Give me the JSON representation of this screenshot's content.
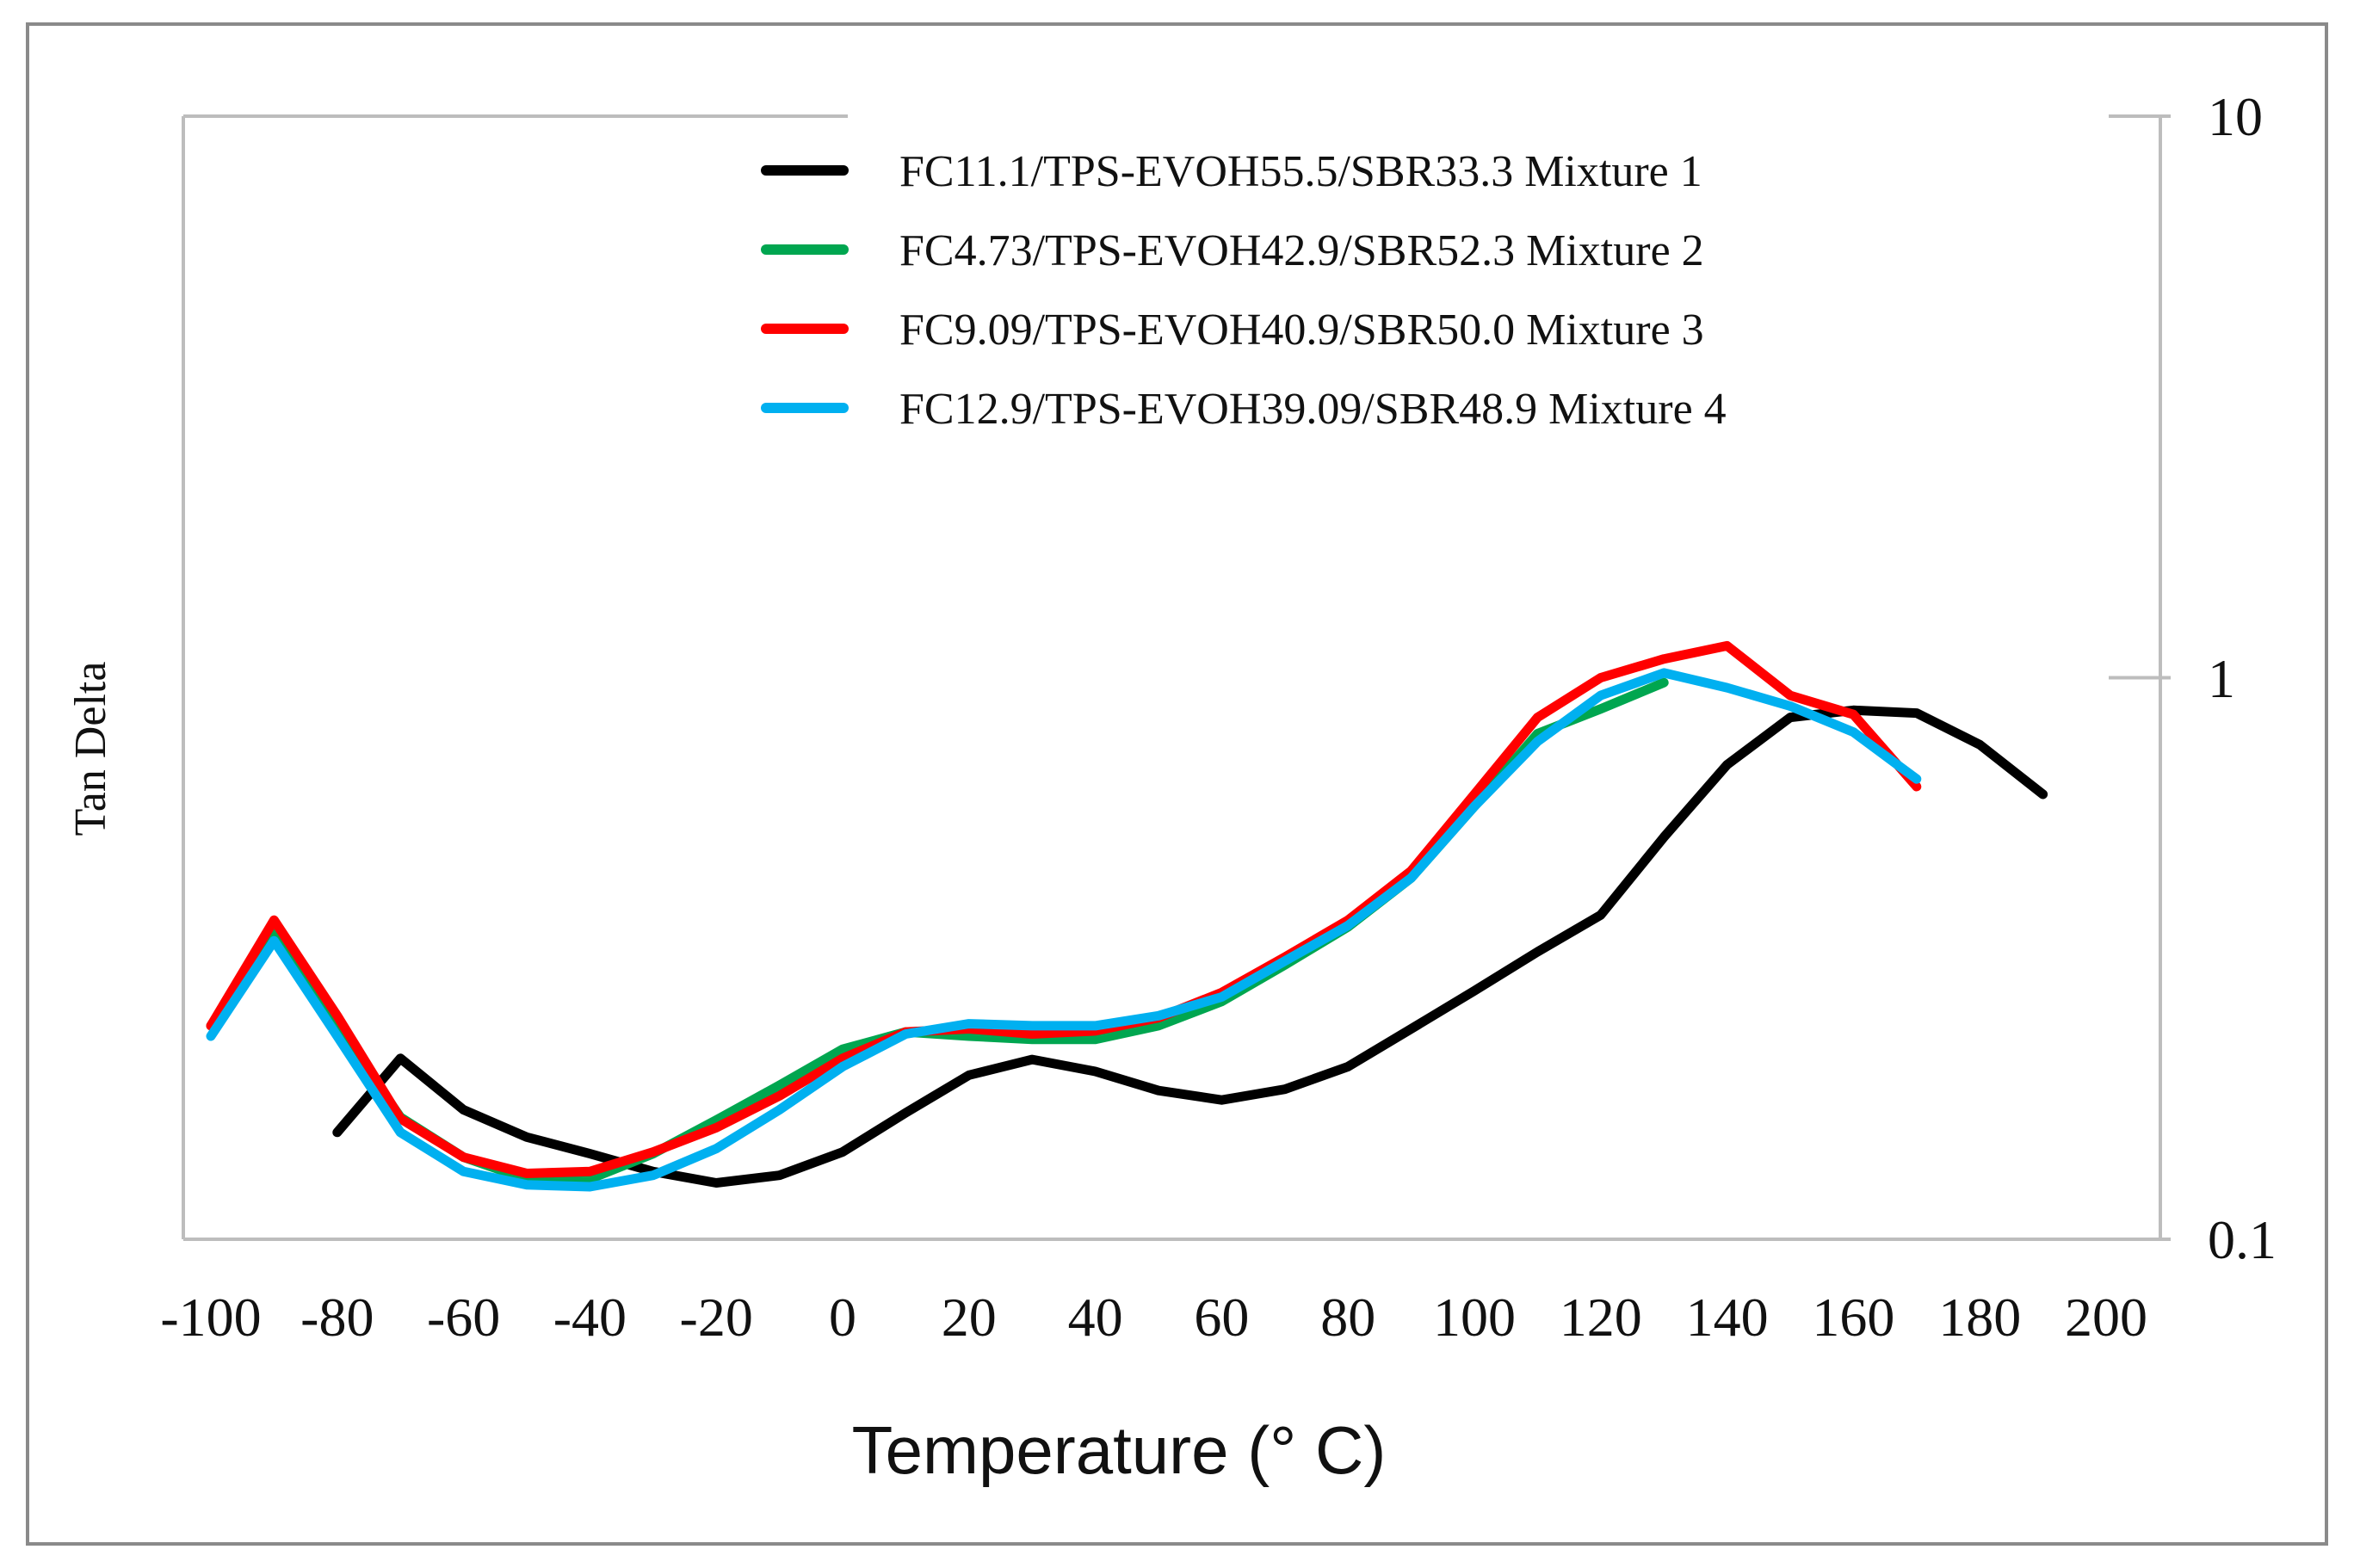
{
  "chart_data": {
    "type": "line",
    "title": "",
    "xlabel": "Temperature (° C)",
    "ylabel": "Tan Delta",
    "xlim": [
      -100,
      200
    ],
    "ylim": [
      0.1,
      10
    ],
    "yscale": "log",
    "xticks": [
      "-100",
      "-80",
      "-60",
      "-40",
      "-20",
      "0",
      "20",
      "40",
      "60",
      "80",
      "100",
      "120",
      "140",
      "160",
      "180",
      "200"
    ],
    "yticks": [
      "10",
      "1",
      "0.1"
    ],
    "grid": false,
    "legend_position": "top",
    "series": [
      {
        "name": "FC11.1/TPS-EVOH55.5/SBR33.3 Mixture 1",
        "color": "#000000",
        "x": [
          -80,
          -70,
          -60,
          -50,
          -40,
          -30,
          -20,
          -10,
          0,
          10,
          20,
          30,
          40,
          50,
          60,
          70,
          80,
          90,
          100,
          110,
          120,
          130,
          140,
          150,
          160,
          170,
          180,
          190
        ],
        "y": [
          0.155,
          0.21,
          0.17,
          0.152,
          0.142,
          0.132,
          0.126,
          0.13,
          0.143,
          0.168,
          0.196,
          0.209,
          0.199,
          0.184,
          0.177,
          0.185,
          0.203,
          0.237,
          0.277,
          0.325,
          0.378,
          0.52,
          0.7,
          0.85,
          0.875,
          0.865,
          0.76,
          0.62
        ]
      },
      {
        "name": "FC4.73/TPS-EVOH42.9/SBR52.3 Mixture 2",
        "color": "#00a650",
        "x": [
          -100,
          -90,
          -80,
          -70,
          -60,
          -50,
          -40,
          -30,
          -20,
          -10,
          0,
          10,
          20,
          30,
          40,
          50,
          60,
          70,
          80,
          90,
          100,
          110,
          120,
          130
        ],
        "y": [
          0.24,
          0.35,
          0.24,
          0.165,
          0.14,
          0.128,
          0.128,
          0.142,
          0.163,
          0.188,
          0.218,
          0.234,
          0.23,
          0.227,
          0.227,
          0.24,
          0.265,
          0.308,
          0.36,
          0.44,
          0.59,
          0.795,
          0.88,
          0.98
        ]
      },
      {
        "name": "FC9.09/TPS-EVOH40.9/SBR50.0 Mixture 3",
        "color": "#ff0000",
        "x": [
          -100,
          -90,
          -80,
          -70,
          -60,
          -50,
          -40,
          -30,
          -20,
          -10,
          0,
          10,
          20,
          30,
          40,
          50,
          60,
          70,
          80,
          90,
          100,
          110,
          120,
          130,
          140,
          150,
          160,
          170
        ],
        "y": [
          0.24,
          0.37,
          0.25,
          0.164,
          0.14,
          0.131,
          0.132,
          0.143,
          0.158,
          0.18,
          0.21,
          0.234,
          0.237,
          0.232,
          0.235,
          0.248,
          0.275,
          0.318,
          0.37,
          0.453,
          0.62,
          0.85,
          1.0,
          1.08,
          1.14,
          0.93,
          0.86,
          0.64
        ]
      },
      {
        "name": "FC12.9/TPS-EVOH39.09/SBR48.9 Mixture 4",
        "color": "#00b0f0",
        "x": [
          -100,
          -90,
          -80,
          -70,
          -60,
          -50,
          -40,
          -30,
          -20,
          -10,
          0,
          10,
          20,
          30,
          40,
          50,
          60,
          70,
          80,
          90,
          100,
          110,
          120,
          130,
          140,
          150,
          160,
          170
        ],
        "y": [
          0.23,
          0.34,
          0.23,
          0.155,
          0.132,
          0.125,
          0.124,
          0.13,
          0.145,
          0.17,
          0.203,
          0.232,
          0.242,
          0.24,
          0.24,
          0.25,
          0.27,
          0.313,
          0.362,
          0.44,
          0.59,
          0.77,
          0.93,
          1.02,
          0.96,
          0.89,
          0.8,
          0.66
        ]
      }
    ]
  }
}
